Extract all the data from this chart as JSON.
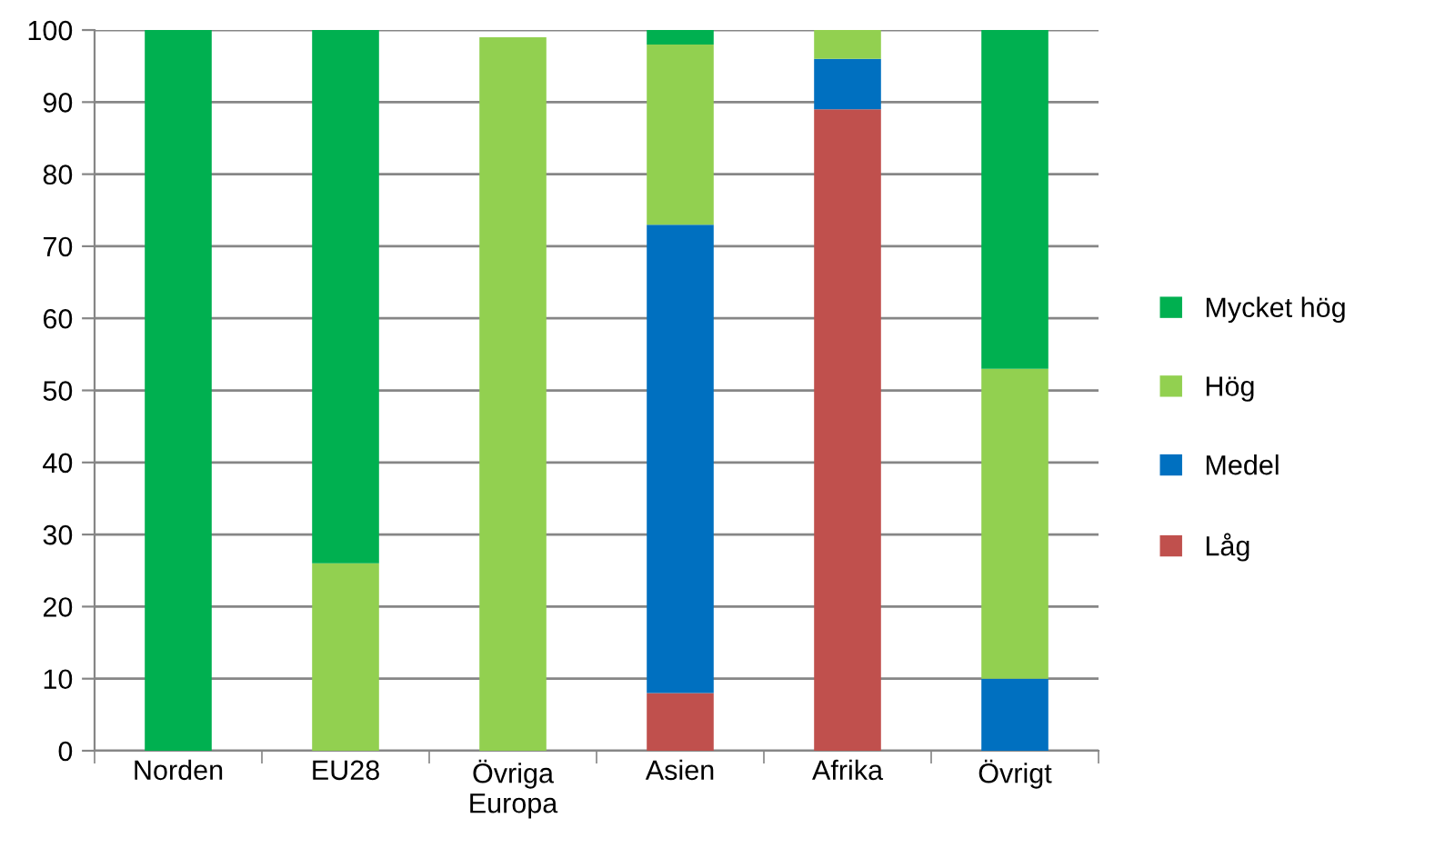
{
  "chart_data": {
    "type": "bar",
    "stacked": true,
    "categories": [
      "Norden",
      "EU28",
      "Övriga\nEuropa",
      "Asien",
      "Afrika",
      "Övrigt"
    ],
    "series": [
      {
        "name": "Låg",
        "color": "#c0504d",
        "values": [
          0,
          0,
          0,
          8,
          89,
          0
        ]
      },
      {
        "name": "Medel",
        "color": "#0070c0",
        "values": [
          0,
          0,
          0,
          65,
          7,
          10
        ]
      },
      {
        "name": "Hög",
        "color": "#92d050",
        "values": [
          0,
          26,
          99,
          25,
          4,
          43
        ]
      },
      {
        "name": "Mycket hög",
        "color": "#00b050",
        "values": [
          100,
          74,
          0,
          2,
          0,
          47
        ]
      }
    ],
    "ylim": [
      0,
      100
    ],
    "yticks": [
      0,
      10,
      20,
      30,
      40,
      50,
      60,
      70,
      80,
      90,
      100
    ],
    "grid": "y",
    "legend": "right"
  }
}
